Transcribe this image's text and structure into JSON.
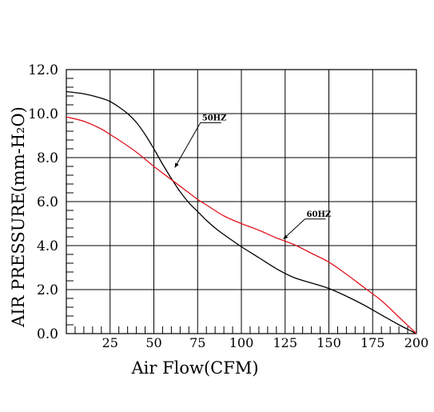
{
  "chart_data": {
    "type": "line",
    "xlabel": "Air Flow(CFM)",
    "ylabel": "AIR PRESSURE(mm-H₂O)",
    "xlim": [
      0,
      200
    ],
    "ylim": [
      0,
      12
    ],
    "grid": true,
    "x_ticks": [
      25,
      50,
      75,
      100,
      125,
      150,
      175,
      200
    ],
    "x_tick_labels": [
      "25",
      "50",
      "75",
      "100",
      "125",
      "150",
      "175",
      "200"
    ],
    "y_ticks": [
      0,
      2,
      4,
      6,
      8,
      10,
      12
    ],
    "y_tick_labels": [
      "0.0",
      "2.0",
      "4.0",
      "6.0",
      "8.0",
      "10.0",
      "12.0"
    ],
    "series": [
      {
        "name": "50HZ",
        "color": "#000000",
        "x": [
          0,
          10,
          20,
          25,
          30,
          35,
          40,
          45,
          50,
          55,
          60,
          65,
          70,
          75,
          80,
          85,
          90,
          100,
          110,
          120,
          130,
          140,
          150,
          160,
          170,
          180,
          190,
          200
        ],
        "y": [
          11.0,
          10.9,
          10.7,
          10.55,
          10.3,
          10.0,
          9.6,
          9.05,
          8.4,
          7.7,
          7.05,
          6.45,
          5.95,
          5.55,
          5.15,
          4.8,
          4.5,
          3.95,
          3.45,
          2.95,
          2.55,
          2.3,
          2.05,
          1.7,
          1.3,
          0.85,
          0.4,
          0.0
        ]
      },
      {
        "name": "60HZ",
        "color": "#e0141e",
        "x": [
          0,
          10,
          20,
          25,
          30,
          40,
          50,
          60,
          70,
          75,
          80,
          90,
          100,
          110,
          120,
          130,
          140,
          150,
          160,
          170,
          180,
          190,
          200
        ],
        "y": [
          9.85,
          9.65,
          9.3,
          9.05,
          8.8,
          8.25,
          7.6,
          7.0,
          6.4,
          6.1,
          5.85,
          5.35,
          5.0,
          4.7,
          4.35,
          4.05,
          3.65,
          3.25,
          2.7,
          2.1,
          1.5,
          0.75,
          0.0
        ]
      }
    ],
    "annotations": [
      {
        "text": "50HZ",
        "series": "50HZ",
        "x": 62,
        "y": 7.55
      },
      {
        "text": "60HZ",
        "series": "60HZ",
        "x": 124,
        "y": 4.3
      }
    ]
  }
}
